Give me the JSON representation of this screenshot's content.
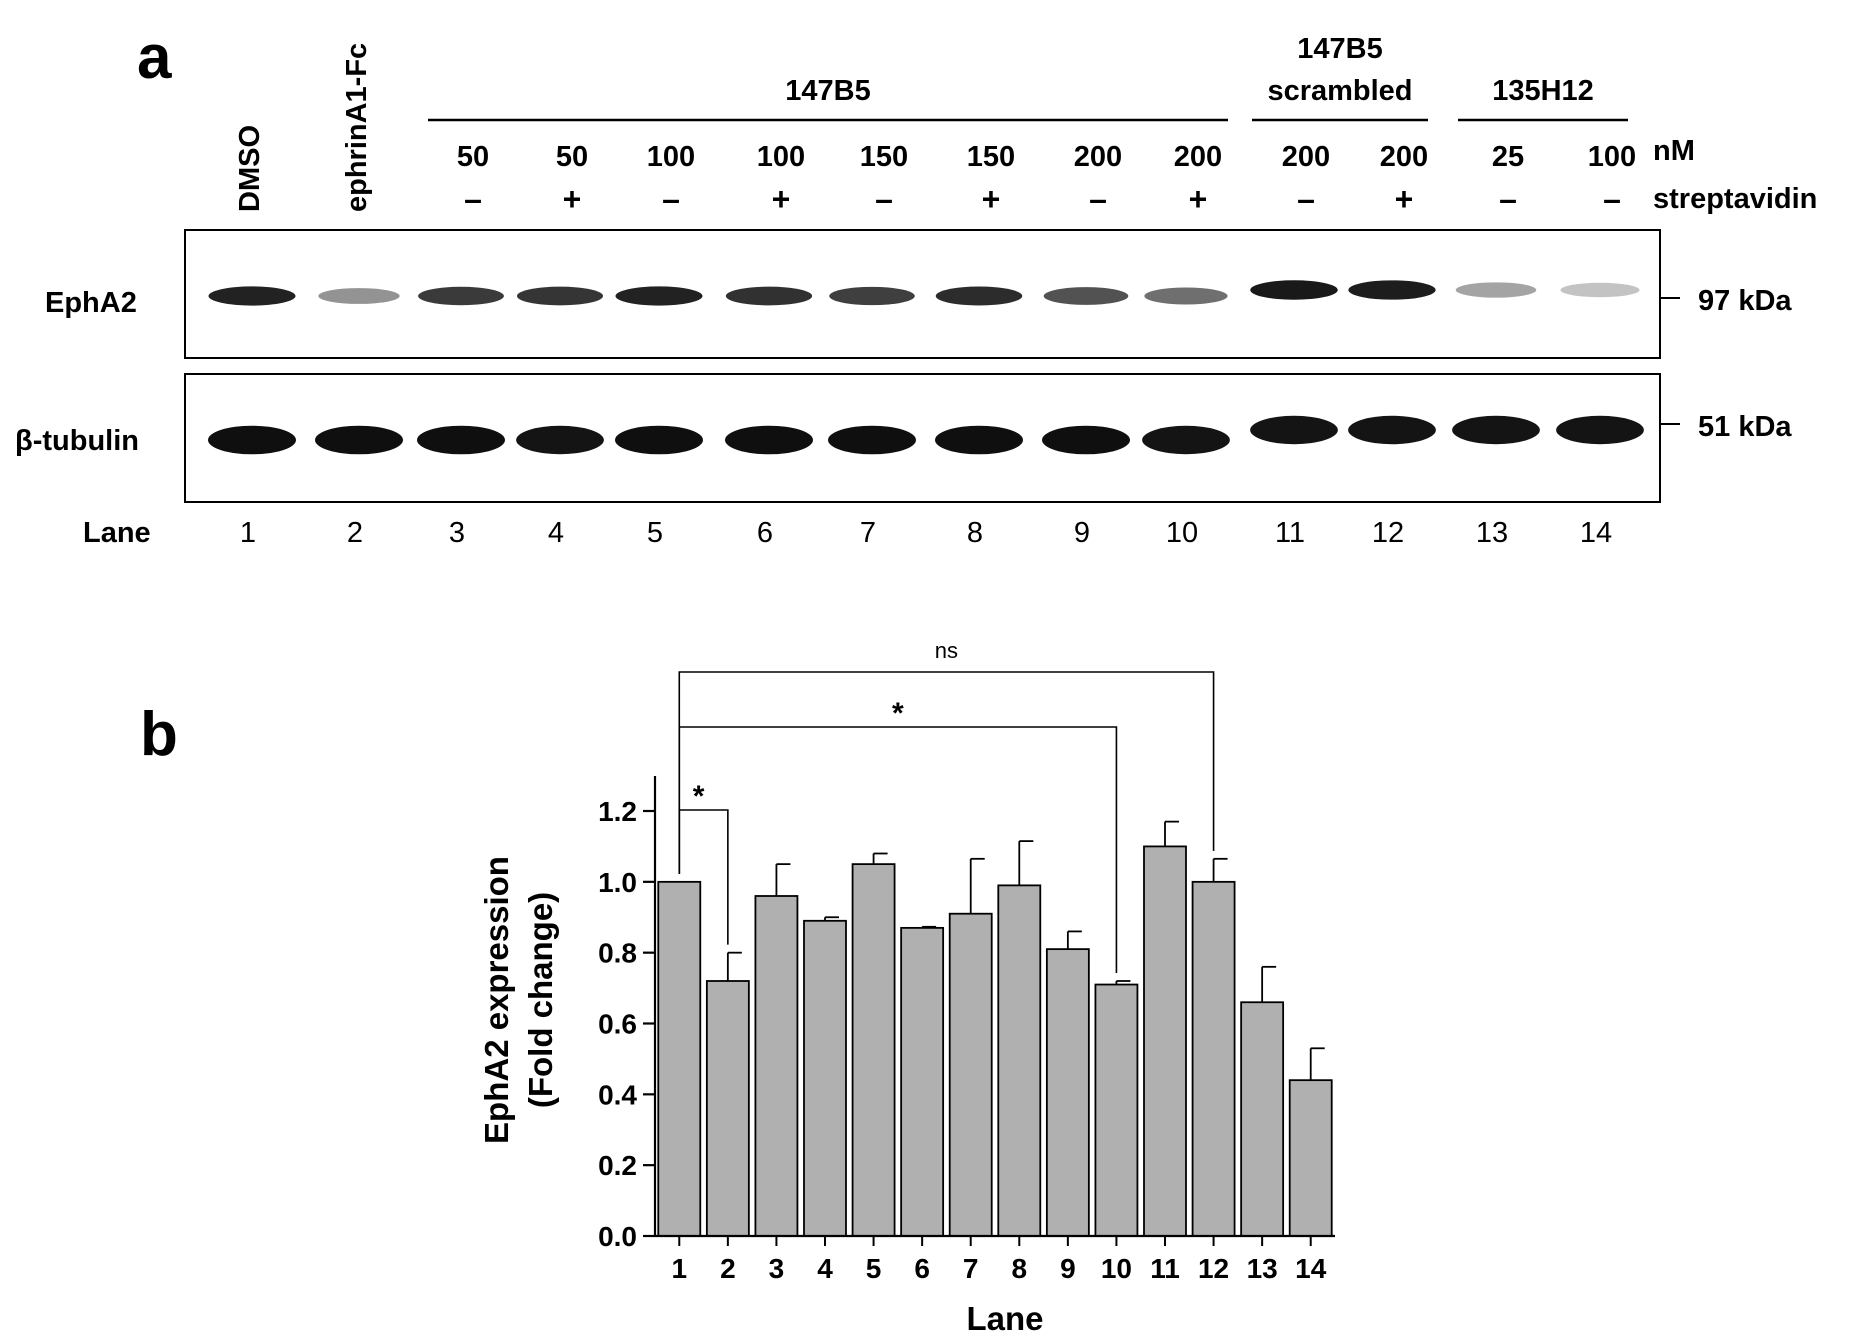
{
  "panel_a": {
    "label": "a",
    "lane_header_labels": [
      "DMSO",
      "ephrinA1-Fc"
    ],
    "groups": [
      {
        "lines": [
          "147B5"
        ],
        "lane_start": 3,
        "lane_end": 10
      },
      {
        "lines": [
          "147B5",
          "scrambled"
        ],
        "lane_start": 11,
        "lane_end": 12
      },
      {
        "lines": [
          "135H12"
        ],
        "lane_start": 13,
        "lane_end": 14
      }
    ],
    "concentrations": [
      "",
      "",
      "50",
      "50",
      "100",
      "100",
      "150",
      "150",
      "200",
      "200",
      "200",
      "200",
      "25",
      "100"
    ],
    "concentration_unit": "nM",
    "streptavidin": [
      "",
      "",
      "–",
      "+",
      "–",
      "+",
      "–",
      "+",
      "–",
      "+",
      "–",
      "+",
      "–",
      "–"
    ],
    "streptavidin_label": "streptavidin",
    "blots": [
      {
        "name": "EphA2",
        "marker": "97 kDa",
        "intensity": [
          0.92,
          0.45,
          0.82,
          0.84,
          0.92,
          0.86,
          0.8,
          0.88,
          0.72,
          0.6,
          0.96,
          0.94,
          0.38,
          0.25
        ]
      },
      {
        "name": "β-tubulin",
        "marker": "51 kDa",
        "intensity": [
          1,
          1,
          1,
          0.98,
          1,
          1,
          1,
          1,
          1,
          0.98,
          0.98,
          0.98,
          0.98,
          0.98
        ]
      }
    ],
    "lane_row_label": "Lane",
    "lanes": [
      "1",
      "2",
      "3",
      "4",
      "5",
      "6",
      "7",
      "8",
      "9",
      "10",
      "11",
      "12",
      "13",
      "14"
    ]
  },
  "panel_b": {
    "label": "b"
  },
  "chart_data": {
    "type": "bar",
    "categories": [
      "1",
      "2",
      "3",
      "4",
      "5",
      "6",
      "7",
      "8",
      "9",
      "10",
      "11",
      "12",
      "13",
      "14"
    ],
    "values": [
      1.0,
      0.72,
      0.96,
      0.89,
      1.05,
      0.87,
      0.91,
      0.99,
      0.81,
      0.71,
      1.1,
      1.0,
      0.66,
      0.44
    ],
    "errors": [
      0.0,
      0.08,
      0.09,
      0.01,
      0.03,
      0.003,
      0.155,
      0.125,
      0.05,
      0.01,
      0.07,
      0.065,
      0.1,
      0.09
    ],
    "xlabel": "Lane",
    "ylabel": [
      "EphA2 expression",
      "(Fold change)"
    ],
    "ylim": [
      0,
      1.2
    ],
    "yticks": [
      "0.0",
      "0.2",
      "0.4",
      "0.6",
      "0.8",
      "1.0",
      "1.2"
    ],
    "bar_color": "#b0b0b0",
    "grid": false,
    "comparisons": [
      {
        "from": "1",
        "to": "2",
        "label": "*"
      },
      {
        "from": "1",
        "to": "10",
        "label": "*"
      },
      {
        "from": "1",
        "to": "12",
        "label": "ns"
      }
    ]
  }
}
